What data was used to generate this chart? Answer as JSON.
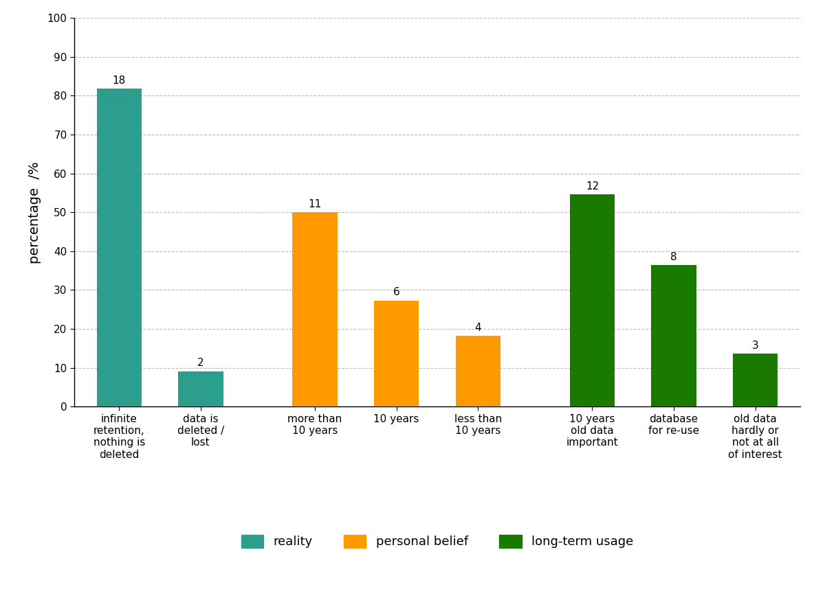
{
  "categories": [
    "infinite\nretention,\nnothing is\ndeleted",
    "data is\ndeleted /\nlost",
    "more than\n10 years",
    "10 years",
    "less than\n10 years",
    "10 years\nold data\nimportant",
    "database\nfor re-use",
    "old data\nhardly or\nnot at all\nof interest"
  ],
  "percentages": [
    81.82,
    9.09,
    50.0,
    27.27,
    18.18,
    54.55,
    36.36,
    13.64
  ],
  "absolute_values": [
    18,
    2,
    11,
    6,
    4,
    12,
    8,
    3
  ],
  "bar_colors": [
    "#2b9e8e",
    "#2b9e8e",
    "#ff9900",
    "#ff9900",
    "#ff9900",
    "#1a7a00",
    "#1a7a00",
    "#1a7a00"
  ],
  "ylabel": "percentage  /%",
  "ylim": [
    0,
    100
  ],
  "yticks": [
    0,
    10,
    20,
    30,
    40,
    50,
    60,
    70,
    80,
    90,
    100
  ],
  "legend_labels": [
    "reality",
    "personal belief",
    "long-term usage"
  ],
  "legend_colors": [
    "#2b9e8e",
    "#ff9900",
    "#1a7a00"
  ],
  "background_color": "#ffffff",
  "grid_color": "#bbbbbb",
  "bar_width": 0.55,
  "annotation_fontsize": 11,
  "axis_label_fontsize": 14,
  "tick_fontsize": 11,
  "legend_fontsize": 13,
  "bar_spacing": 1.4
}
